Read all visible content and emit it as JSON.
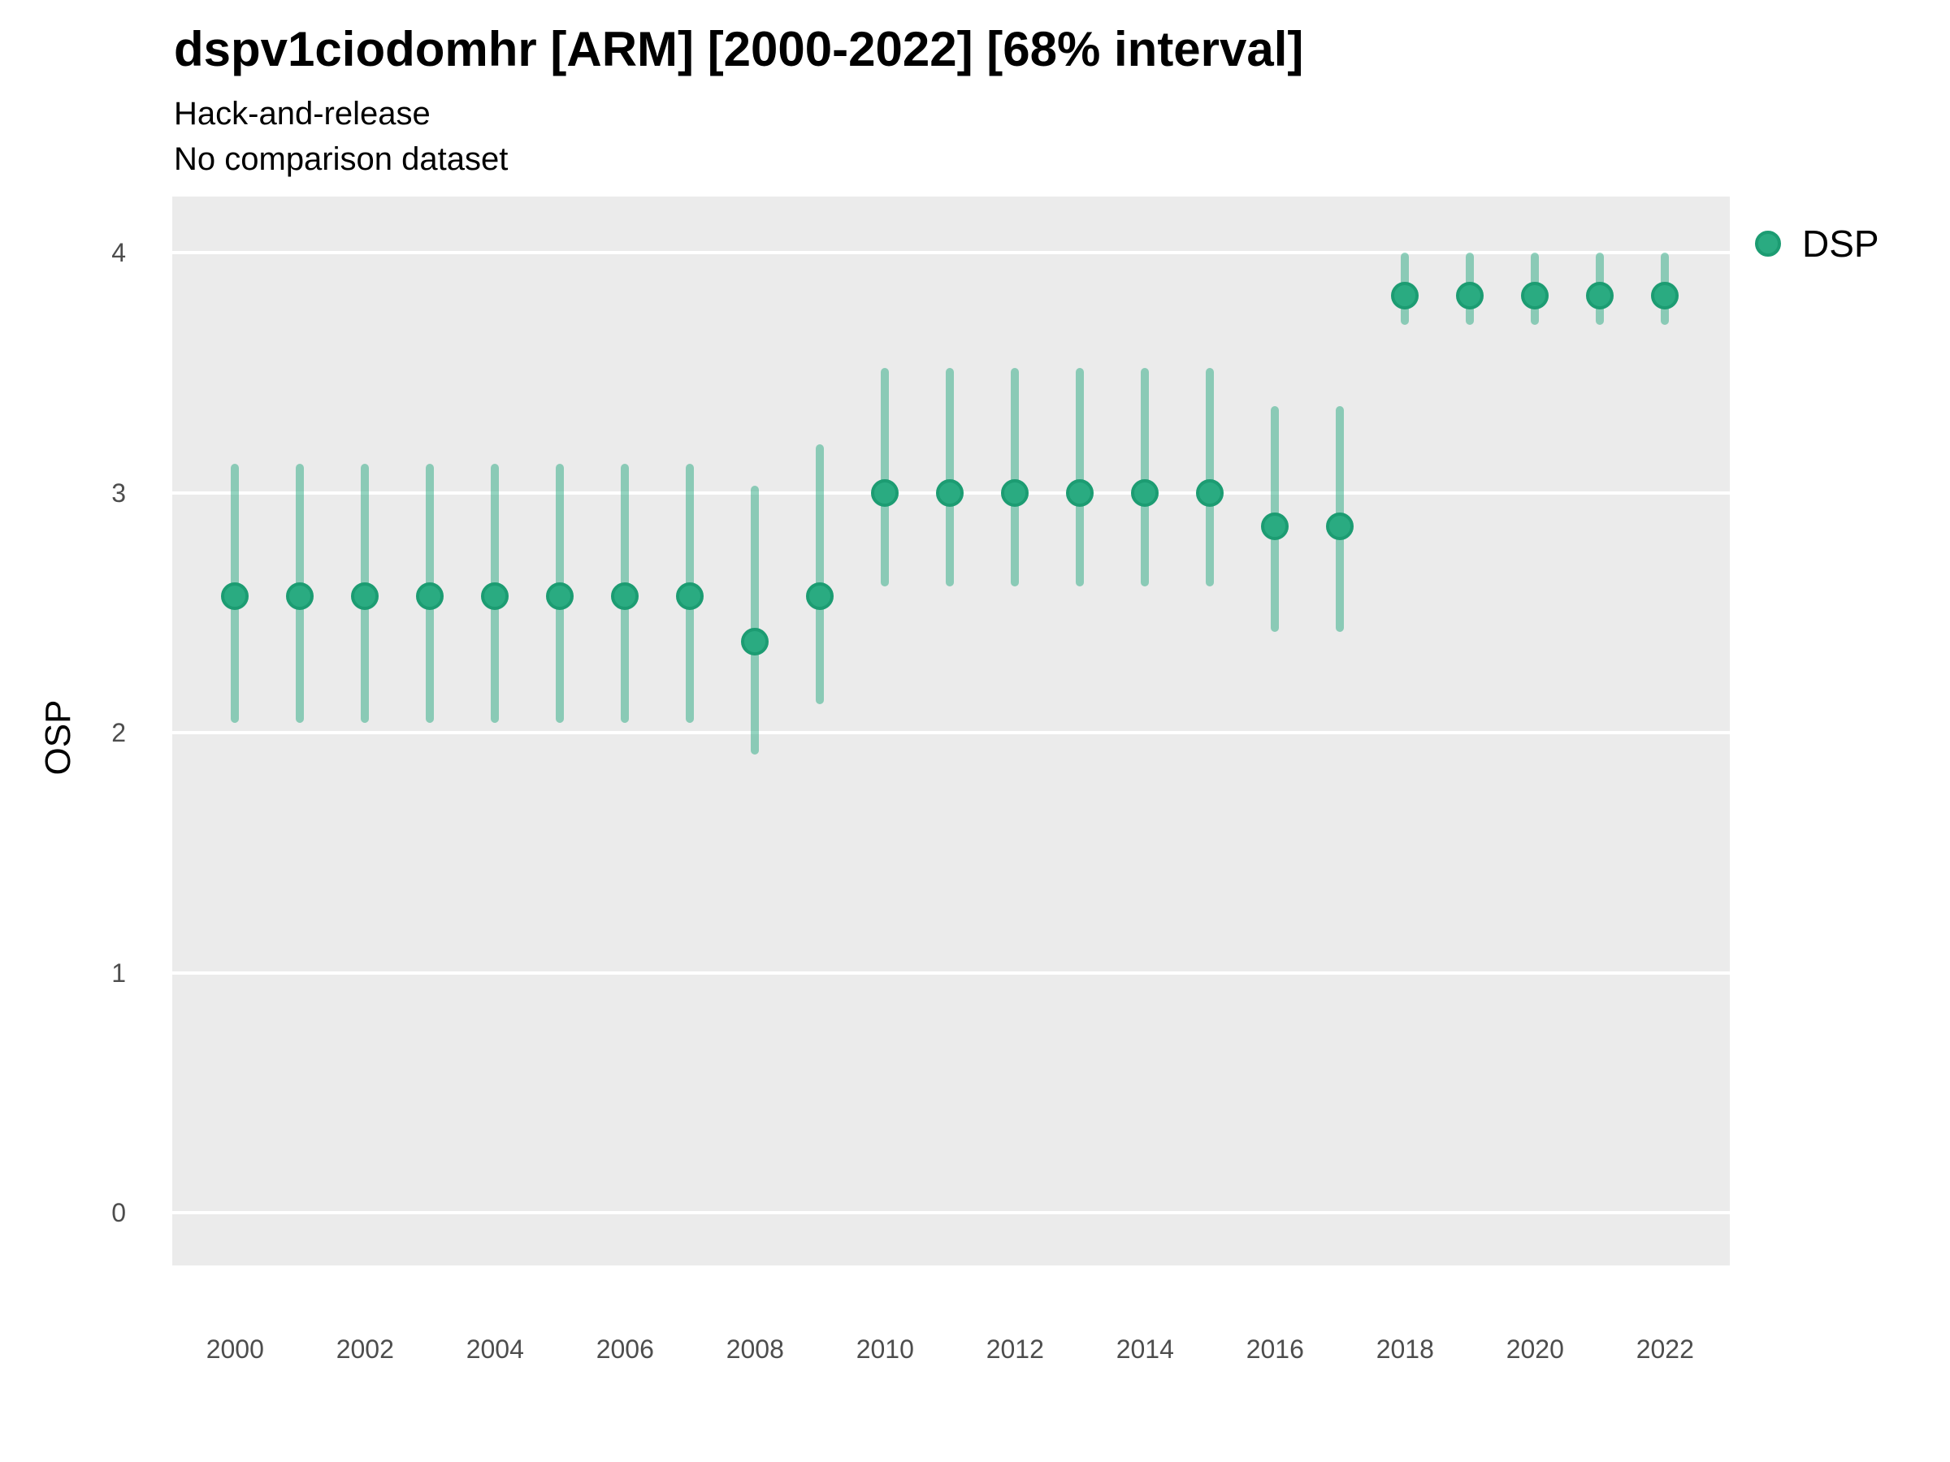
{
  "header": {
    "title": "dspv1ciodomhr [ARM] [2000-2022] [68% interval]",
    "subtitle1": "Hack-and-release",
    "subtitle2": "No comparison dataset"
  },
  "colors": {
    "point_fill": "#2aab81",
    "point_stroke": "#1c9c72",
    "interval_bar": "rgba(42,170,129,0.5)",
    "panel_background": "#ebebeb",
    "gridline": "#ffffff",
    "tick_text": "#4d4d4d",
    "text": "#000000"
  },
  "chart_data": {
    "type": "scatter",
    "title": "dspv1ciodomhr [ARM] [2000-2022] [68% interval]",
    "subtitle1": "Hack-and-release",
    "subtitle2": "No comparison dataset",
    "xlabel": "",
    "ylabel": "OSP",
    "ylim": [
      0,
      4
    ],
    "y_ticks": [
      0,
      1,
      2,
      3,
      4
    ],
    "x_tick_labels": [
      "2000",
      "2002",
      "2004",
      "2006",
      "2008",
      "2010",
      "2012",
      "2014",
      "2016",
      "2018",
      "2020",
      "2022"
    ],
    "x_tick_years": [
      2000,
      2002,
      2004,
      2006,
      2008,
      2010,
      2012,
      2014,
      2016,
      2018,
      2020,
      2022
    ],
    "interval": "68%",
    "grid": "horizontal-major-only",
    "legend_position": "right-top",
    "x": [
      2000,
      2001,
      2002,
      2003,
      2004,
      2005,
      2006,
      2007,
      2008,
      2009,
      2010,
      2011,
      2012,
      2013,
      2014,
      2015,
      2016,
      2017,
      2018,
      2019,
      2020,
      2021,
      2022
    ],
    "series": [
      {
        "name": "DSP",
        "estimates": [
          2.57,
          2.57,
          2.57,
          2.57,
          2.57,
          2.57,
          2.57,
          2.57,
          2.38,
          2.57,
          3.0,
          3.0,
          3.0,
          3.0,
          3.0,
          3.0,
          2.86,
          2.86,
          3.82,
          3.82,
          3.82,
          3.82,
          3.82
        ],
        "lower_68": [
          2.04,
          2.04,
          2.04,
          2.04,
          2.04,
          2.04,
          2.04,
          2.04,
          1.91,
          2.12,
          2.61,
          2.61,
          2.61,
          2.61,
          2.61,
          2.61,
          2.42,
          2.42,
          3.7,
          3.7,
          3.7,
          3.7,
          3.7
        ],
        "upper_68": [
          3.12,
          3.12,
          3.12,
          3.12,
          3.12,
          3.12,
          3.12,
          3.12,
          3.03,
          3.2,
          3.52,
          3.52,
          3.52,
          3.52,
          3.52,
          3.52,
          3.36,
          3.36,
          4.0,
          4.0,
          4.0,
          4.0,
          4.0
        ]
      }
    ]
  }
}
